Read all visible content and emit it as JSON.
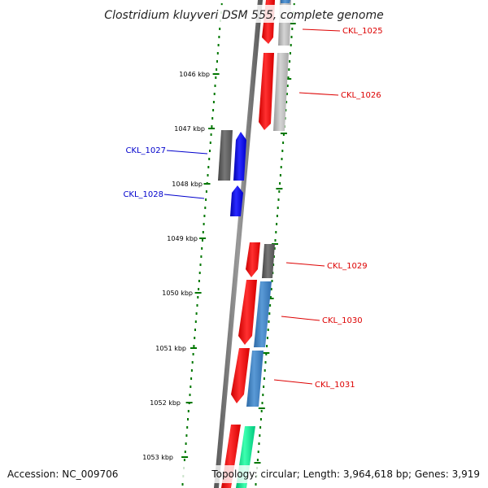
{
  "title": "Clostridium kluyveri DSM 555, complete genome",
  "accession": "Accession: NC_009706",
  "topology": "Topology: circular; Length: 3,964,618 bp; Genes: 3,919",
  "scale_labels": [
    "1046 kbp",
    "1047 kbp",
    "1048 kbp",
    "1049 kbp",
    "1050 kbp",
    "1051 kbp",
    "1052 kbp",
    "1053 kbp"
  ],
  "gene_labels": [
    {
      "text": "CKL_1025",
      "strand": "forward"
    },
    {
      "text": "CKL_1026",
      "strand": "forward"
    },
    {
      "text": "CKL_1027",
      "strand": "reverse"
    },
    {
      "text": "CKL_1028",
      "strand": "reverse"
    },
    {
      "text": "CKL_1029",
      "strand": "forward"
    },
    {
      "text": "CKL_1030",
      "strand": "forward"
    },
    {
      "text": "CKL_1031",
      "strand": "forward"
    }
  ],
  "colors": {
    "forward_label": "#dd0000",
    "reverse_label": "#0000cc",
    "backbone": "#777777",
    "scale_tick": "#007700",
    "gene_red": "#ff0000",
    "gene_blue": "#0000ff",
    "gene_gray_dark": "#555555",
    "gene_gray_light": "#bbbbbb",
    "gene_steel": "#3a7fc0",
    "gene_teal": "#00e38f"
  }
}
